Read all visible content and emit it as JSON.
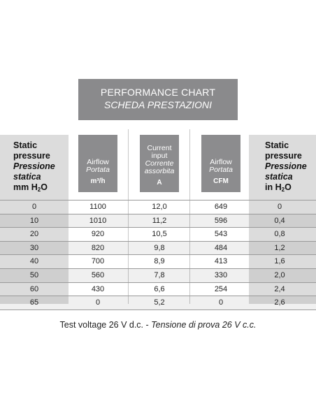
{
  "title": {
    "line1": "PERFORMANCE CHART",
    "line2": "SCHEDA PRESTAZIONI"
  },
  "left_header": {
    "l1": "Static",
    "l2": "pressure",
    "l3": "Pressione",
    "l4": "statica",
    "unit": "mm H",
    "unit_sub": "2",
    "unit_end": "O"
  },
  "right_header": {
    "l1": "Static",
    "l2": "pressure",
    "l3": "Pressione",
    "l4": "statica",
    "unit": "in H",
    "unit_sub": "2",
    "unit_end": "O"
  },
  "col1": {
    "name": "Airflow",
    "italic": "Portata",
    "unit": "m³/h"
  },
  "col2": {
    "name1": "Current",
    "name2": "input",
    "italic1": "Corrente",
    "italic2": "assorbita",
    "unit": "A"
  },
  "col3": {
    "name": "Airflow",
    "italic": "Portata",
    "unit": "CFM"
  },
  "rows": [
    [
      "0",
      "1100",
      "12,0",
      "649",
      "0"
    ],
    [
      "10",
      "1010",
      "11,2",
      "596",
      "0,4"
    ],
    [
      "20",
      "920",
      "10,5",
      "543",
      "0,8"
    ],
    [
      "30",
      "820",
      "9,8",
      "484",
      "1,2"
    ],
    [
      "40",
      "700",
      "8,9",
      "413",
      "1,6"
    ],
    [
      "50",
      "560",
      "7,8",
      "330",
      "2,0"
    ],
    [
      "60",
      "430",
      "6,6",
      "254",
      "2,4"
    ],
    [
      "65",
      "0",
      "5,2",
      "0",
      "2,6"
    ]
  ],
  "footer": {
    "normal": "Test voltage 26 V d.c. - ",
    "italic": "Tensione di prova 26 V c.c."
  },
  "colors": {
    "header_box": "#8a8a8c",
    "side_column": "#dcdcdc",
    "rule": "#9a9a9a"
  }
}
